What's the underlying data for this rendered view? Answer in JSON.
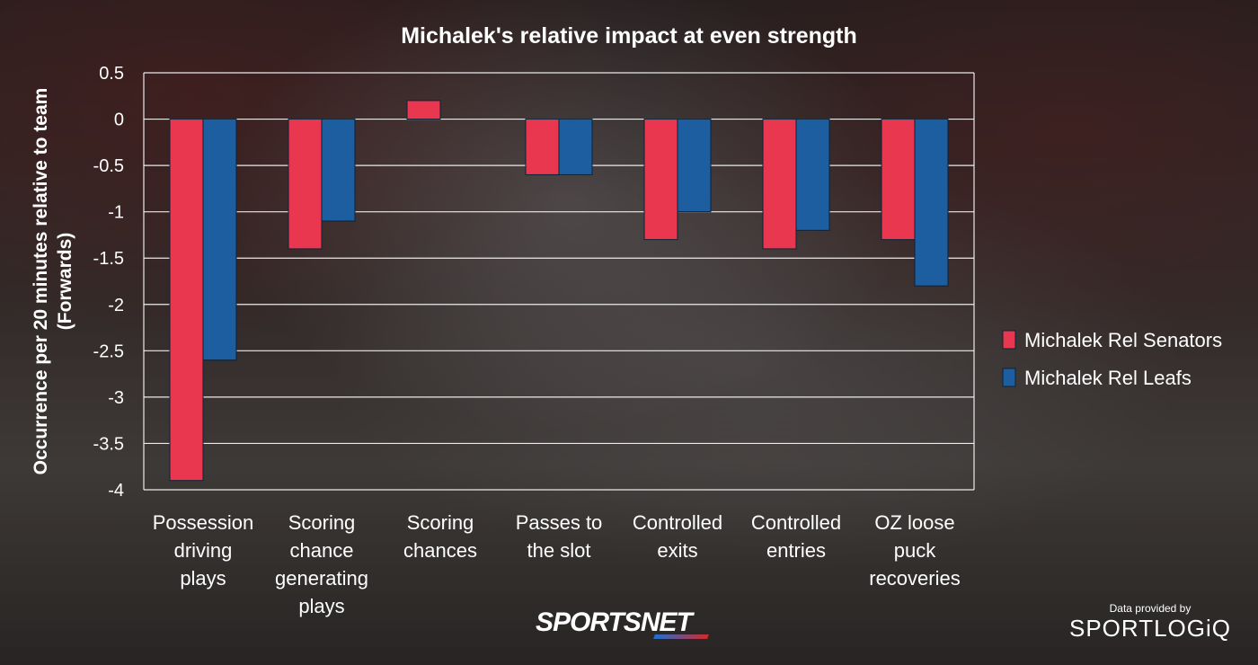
{
  "chart_data": {
    "type": "bar",
    "title": "Michalek's relative impact at even strength",
    "ylabel_lines": [
      "Occurrence per 20 minutes relative to team",
      "(Forwards)"
    ],
    "xlabel": "",
    "ylim": [
      -4,
      0.5
    ],
    "yticks": [
      0.5,
      0,
      -0.5,
      -1,
      -1.5,
      -2,
      -2.5,
      -3,
      -3.5,
      -4
    ],
    "ytick_labels": [
      "0.5",
      "0",
      "-0.5",
      "-1",
      "-1.5",
      "-2",
      "-2.5",
      "-3",
      "-3.5",
      "-4"
    ],
    "grid": true,
    "legend_position": "right",
    "categories": [
      [
        "Possession",
        "driving",
        "plays"
      ],
      [
        "Scoring",
        "chance",
        "generating",
        "plays"
      ],
      [
        "Scoring",
        "chances"
      ],
      [
        "Passes to",
        "the slot"
      ],
      [
        "Controlled",
        "exits"
      ],
      [
        "Controlled",
        "entries"
      ],
      [
        "OZ loose",
        "puck",
        "recoveries"
      ]
    ],
    "series": [
      {
        "name": "Michalek Rel Senators",
        "color": "#e8374f",
        "values": [
          -3.9,
          -1.4,
          0.2,
          -0.6,
          -1.3,
          -1.4,
          -1.3
        ]
      },
      {
        "name": "Michalek Rel Leafs",
        "color": "#1d5ea0",
        "values": [
          -2.6,
          -1.1,
          null,
          -0.6,
          -1.0,
          -1.2,
          -1.8
        ]
      }
    ]
  },
  "branding": {
    "sportsnet": "SPORTSNET",
    "provider_note": "Data provided by",
    "provider_logo": "SPORTLOGiQ"
  }
}
